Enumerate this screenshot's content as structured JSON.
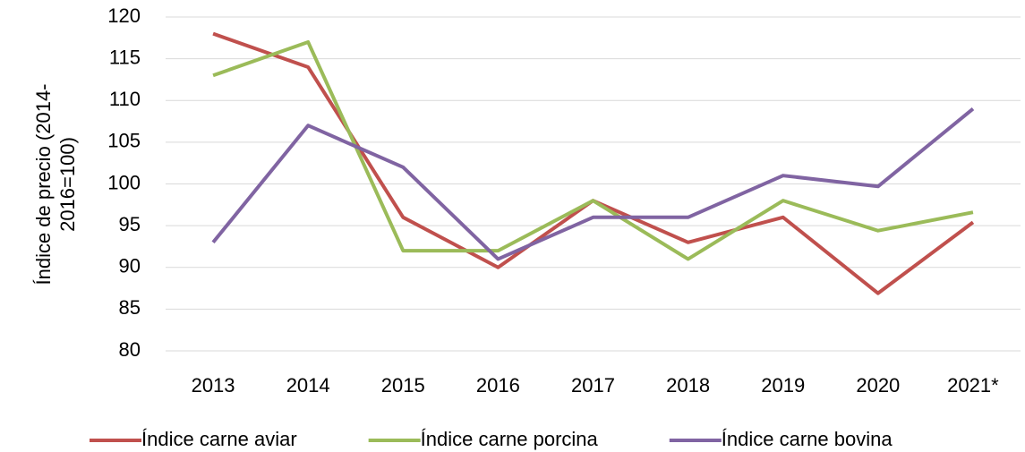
{
  "chart_data": {
    "type": "line",
    "y_label": "Índice de precio (2014-2016=100)",
    "categories": [
      "2013",
      "2014",
      "2015",
      "2016",
      "2017",
      "2018",
      "2019",
      "2020",
      "2021*"
    ],
    "series": [
      {
        "name": "Índice carne aviar",
        "color": "#c0504d",
        "values": [
          118,
          114,
          96,
          90,
          98,
          93,
          96,
          86.9,
          95.4
        ]
      },
      {
        "name": "Índice carne porcina",
        "color": "#9bbb59",
        "values": [
          113,
          117,
          92,
          92,
          98,
          91,
          98,
          94.4,
          96.6
        ]
      },
      {
        "name": "Índice carne bovina",
        "color": "#8064a2",
        "values": [
          93,
          107,
          102,
          91,
          96,
          96,
          101,
          99.7,
          109
        ]
      }
    ],
    "ylim": [
      80,
      120
    ],
    "yticks": [
      80,
      85,
      90,
      95,
      100,
      105,
      110,
      115,
      120
    ],
    "grid": true,
    "legend": "bottom"
  }
}
